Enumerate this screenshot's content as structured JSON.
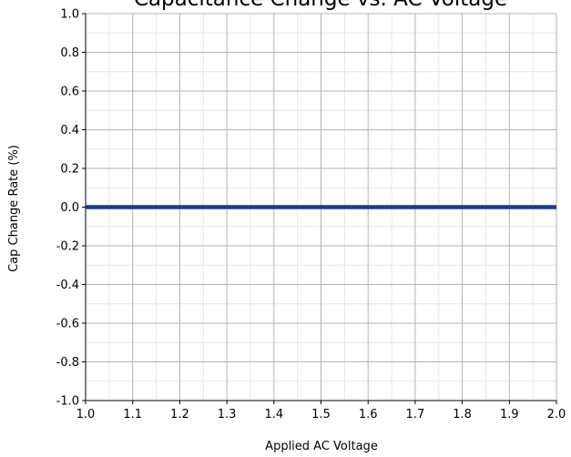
{
  "chart_data": {
    "type": "line",
    "title": "Capacitance Change vs. AC Voltage",
    "xlabel": "Applied AC Voltage",
    "ylabel": "Cap Change Rate (%)",
    "xlim": [
      1.0,
      2.0
    ],
    "ylim": [
      -1.0,
      1.0
    ],
    "x_ticks": [
      "1.0",
      "1.1",
      "1.2",
      "1.3",
      "1.4",
      "1.5",
      "1.6",
      "1.7",
      "1.8",
      "1.9",
      "2.0"
    ],
    "y_ticks": [
      "1.0",
      "0.8",
      "0.6",
      "0.4",
      "0.2",
      "0.0",
      "-0.2",
      "-0.4",
      "-0.6",
      "-0.8",
      "-1.0"
    ],
    "grid": true,
    "minor_grid": true,
    "series": [
      {
        "x": [
          1.0,
          2.0
        ],
        "y": [
          0.0,
          0.0
        ],
        "color": "#1f3a8a"
      }
    ]
  }
}
